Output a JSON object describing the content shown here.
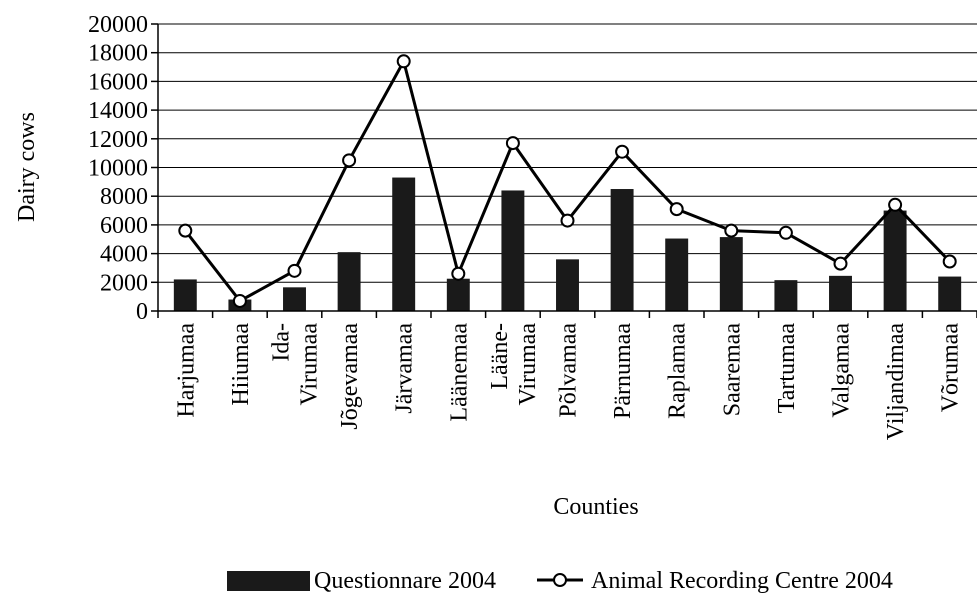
{
  "chart_data": {
    "type": "bar",
    "title": "",
    "xlabel": "Counties",
    "ylabel": "Dairy cows",
    "ylim": [
      0,
      20000
    ],
    "yticks": [
      0,
      2000,
      4000,
      6000,
      8000,
      10000,
      12000,
      14000,
      16000,
      18000,
      20000
    ],
    "grid": true,
    "legend_position": "bottom",
    "categories": [
      [
        "Harjumaa"
      ],
      [
        "Hiiumaa"
      ],
      [
        "Ida-",
        "Virumaa"
      ],
      [
        "Jõgevamaa"
      ],
      [
        "Järvamaa"
      ],
      [
        "Läänemaa"
      ],
      [
        "Lääne-",
        "Virumaa"
      ],
      [
        "Põlvamaa"
      ],
      [
        "Pärnumaa"
      ],
      [
        "Raplamaa"
      ],
      [
        "Saaremaa"
      ],
      [
        "Tartumaa"
      ],
      [
        "Valgamaa"
      ],
      [
        "Viljandimaa"
      ],
      [
        "Võrumaa"
      ]
    ],
    "series": [
      {
        "name": "Questionnare 2004",
        "kind": "bar",
        "color": "#1a1a1a",
        "values": [
          2200,
          800,
          1650,
          4100,
          9300,
          2250,
          8400,
          3600,
          8500,
          5050,
          5150,
          2150,
          2450,
          7000,
          2400
        ]
      },
      {
        "name": "Animal Recording Centre 2004",
        "kind": "line",
        "color": "#000000",
        "values": [
          5600,
          700,
          2800,
          10500,
          17400,
          2600,
          11700,
          6300,
          11100,
          7100,
          5600,
          5450,
          3300,
          7400,
          3450
        ]
      }
    ]
  }
}
